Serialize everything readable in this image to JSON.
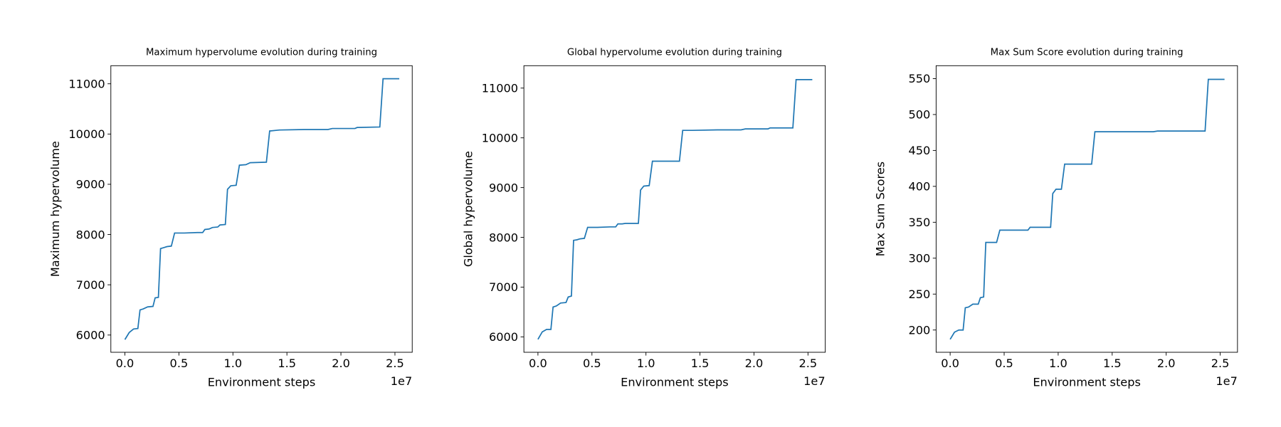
{
  "chart_data": [
    {
      "type": "line",
      "title": "Maximum hypervolume evolution during training",
      "xlabel": "Environment steps",
      "ylabel": "Maximum hypervolume",
      "x_offset_label": "1e7",
      "x": [
        0,
        0.04,
        0.08,
        0.12,
        0.14,
        0.17,
        0.21,
        0.26,
        0.28,
        0.31,
        0.33,
        0.36,
        0.39,
        0.43,
        0.46,
        0.55,
        0.67,
        0.72,
        0.74,
        0.78,
        0.81,
        0.86,
        0.88,
        0.93,
        0.95,
        0.98,
        1.03,
        1.06,
        1.12,
        1.16,
        1.31,
        1.34,
        1.43,
        1.66,
        1.88,
        1.92,
        2.13,
        2.15,
        2.36,
        2.39,
        2.54
      ],
      "values": [
        5910,
        6050,
        6120,
        6130,
        6500,
        6520,
        6560,
        6570,
        6740,
        6750,
        7720,
        7740,
        7760,
        7770,
        8030,
        8030,
        8040,
        8040,
        8100,
        8110,
        8140,
        8150,
        8190,
        8200,
        8900,
        8970,
        8980,
        9380,
        9390,
        9430,
        9440,
        10060,
        10080,
        10090,
        10090,
        10110,
        10110,
        10130,
        10140,
        11100,
        11100
      ],
      "color": "#1f77b4",
      "xlim": [
        -0.13,
        2.66
      ],
      "ylim": [
        5657,
        11360
      ],
      "xticks": [
        {
          "value": 0,
          "label": "0.0"
        },
        0.5,
        {
          "value": 1,
          "label": "1.0"
        },
        1.5,
        {
          "value": 2,
          "label": "2.0"
        },
        2.5
      ],
      "yticks": [
        6000,
        7000,
        8000,
        9000,
        10000,
        11000
      ]
    },
    {
      "type": "line",
      "title": "Global hypervolume evolution during training",
      "xlabel": "Environment steps",
      "ylabel": "Global hypervolume",
      "x_offset_label": "1e7",
      "x": [
        0,
        0.04,
        0.08,
        0.12,
        0.14,
        0.17,
        0.21,
        0.26,
        0.28,
        0.31,
        0.33,
        0.36,
        0.39,
        0.43,
        0.46,
        0.55,
        0.67,
        0.72,
        0.74,
        0.78,
        0.81,
        0.86,
        0.88,
        0.93,
        0.95,
        0.98,
        1.03,
        1.06,
        1.12,
        1.16,
        1.31,
        1.34,
        1.43,
        1.66,
        1.88,
        1.92,
        2.13,
        2.15,
        2.36,
        2.39,
        2.54
      ],
      "values": [
        5950,
        6100,
        6150,
        6150,
        6600,
        6620,
        6680,
        6690,
        6800,
        6820,
        7940,
        7950,
        7970,
        7980,
        8200,
        8200,
        8210,
        8210,
        8270,
        8270,
        8280,
        8280,
        8280,
        8280,
        8950,
        9030,
        9040,
        9530,
        9530,
        9530,
        9530,
        10150,
        10150,
        10160,
        10160,
        10180,
        10180,
        10200,
        10200,
        11170,
        11170
      ],
      "color": "#1f77b4",
      "xlim": [
        -0.13,
        2.66
      ],
      "ylim": [
        5690,
        11450
      ],
      "xticks": [
        {
          "value": 0,
          "label": "0.0"
        },
        0.5,
        {
          "value": 1,
          "label": "1.0"
        },
        1.5,
        {
          "value": 2,
          "label": "2.0"
        },
        2.5
      ],
      "yticks": [
        6000,
        7000,
        8000,
        9000,
        10000,
        11000
      ]
    },
    {
      "type": "line",
      "title": "Max Sum Score evolution during training",
      "xlabel": "Environment steps",
      "ylabel": "Max Sum Scores",
      "x_offset_label": "1e7",
      "x": [
        0,
        0.04,
        0.08,
        0.12,
        0.14,
        0.17,
        0.21,
        0.26,
        0.28,
        0.31,
        0.33,
        0.36,
        0.39,
        0.43,
        0.46,
        0.55,
        0.67,
        0.72,
        0.74,
        0.78,
        0.81,
        0.86,
        0.88,
        0.93,
        0.95,
        0.98,
        1.03,
        1.06,
        1.12,
        1.16,
        1.31,
        1.34,
        1.43,
        1.66,
        1.88,
        1.92,
        2.13,
        2.15,
        2.36,
        2.39,
        2.54
      ],
      "values": [
        187,
        197,
        200,
        200,
        231,
        232,
        236,
        236,
        245,
        246,
        322,
        322,
        322,
        322,
        339,
        339,
        339,
        339,
        343,
        343,
        343,
        343,
        343,
        343,
        390,
        396,
        396,
        431,
        431,
        431,
        431,
        476,
        476,
        476,
        476,
        477,
        477,
        477,
        477,
        549,
        549
      ],
      "color": "#1f77b4",
      "xlim": [
        -0.13,
        2.66
      ],
      "ylim": [
        169,
        568
      ],
      "xticks": [
        {
          "value": 0,
          "label": "0.0"
        },
        0.5,
        {
          "value": 1,
          "label": "1.0"
        },
        1.5,
        {
          "value": 2,
          "label": "2.0"
        },
        2.5
      ],
      "yticks": [
        200,
        250,
        300,
        350,
        400,
        450,
        500,
        550
      ]
    }
  ]
}
